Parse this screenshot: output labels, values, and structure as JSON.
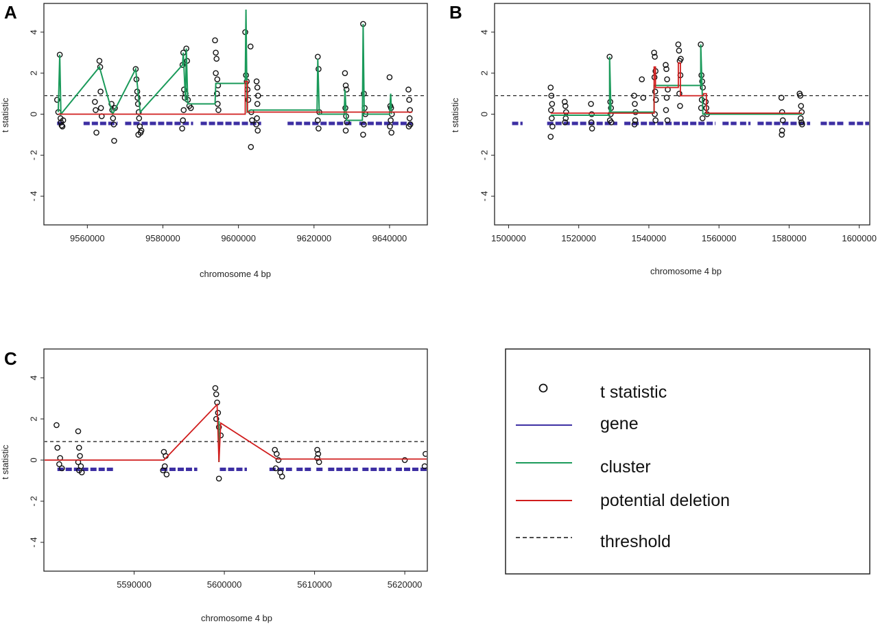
{
  "colors": {
    "point": "#111111",
    "gene": "#3d2fa3",
    "cluster": "#1a9a5a",
    "deletion": "#d01c1c",
    "threshold": "#111111"
  },
  "legend": {
    "items": [
      {
        "key": "point",
        "label": "t statistic"
      },
      {
        "key": "gene",
        "label": "gene"
      },
      {
        "key": "cluster",
        "label": "cluster"
      },
      {
        "key": "deletion",
        "label": "potential deletion"
      },
      {
        "key": "threshold",
        "label": "threshold"
      }
    ]
  },
  "chart_data": [
    {
      "panel": "A",
      "type": "scatter",
      "xlabel": "chromosome 4 bp",
      "ylabel": "t statistic",
      "xlim": [
        9548500,
        9650000
      ],
      "ylim": [
        -5.4,
        5.4
      ],
      "xticks": [
        9560000,
        9580000,
        9600000,
        9620000,
        9640000
      ],
      "yticks": [
        4,
        2,
        0,
        -2,
        -4
      ],
      "threshold": 0.9,
      "gene_segments": [
        [
          9552000,
          9554000
        ],
        [
          9559000,
          9568000
        ],
        [
          9570000,
          9588000
        ],
        [
          9590000,
          9606000
        ],
        [
          9613000,
          9630000
        ],
        [
          9632000,
          9646000
        ]
      ],
      "gene_y": -0.45,
      "points": [
        [
          9552000,
          0.7
        ],
        [
          9552300,
          0.1
        ],
        [
          9552700,
          2.9
        ],
        [
          9552900,
          -0.2
        ],
        [
          9553000,
          -0.4
        ],
        [
          9553200,
          -0.55
        ],
        [
          9553400,
          -0.6
        ],
        [
          9553600,
          -0.3
        ],
        [
          9562000,
          0.6
        ],
        [
          9562200,
          0.2
        ],
        [
          9562400,
          -0.9
        ],
        [
          9563200,
          2.6
        ],
        [
          9563400,
          2.3
        ],
        [
          9563500,
          1.1
        ],
        [
          9563600,
          0.3
        ],
        [
          9563800,
          -0.1
        ],
        [
          9566400,
          0.5
        ],
        [
          9566600,
          0.2
        ],
        [
          9566800,
          -0.2
        ],
        [
          9567000,
          -0.5
        ],
        [
          9567100,
          -1.3
        ],
        [
          9567300,
          0.3
        ],
        [
          9572800,
          2.2
        ],
        [
          9573000,
          1.7
        ],
        [
          9573200,
          1.1
        ],
        [
          9573300,
          0.8
        ],
        [
          9573400,
          0.5
        ],
        [
          9573600,
          0.1
        ],
        [
          9573700,
          -0.2
        ],
        [
          9573900,
          -0.6
        ],
        [
          9574100,
          -0.9
        ],
        [
          9574300,
          -0.8
        ],
        [
          9573500,
          -1.0
        ],
        [
          9585200,
          2.4
        ],
        [
          9585400,
          3.0
        ],
        [
          9585600,
          1.2
        ],
        [
          9585800,
          0.8
        ],
        [
          9585500,
          0.2
        ],
        [
          9585300,
          -0.3
        ],
        [
          9585100,
          -0.7
        ],
        [
          9586000,
          1.0
        ],
        [
          9586200,
          3.2
        ],
        [
          9586400,
          2.6
        ],
        [
          9586600,
          0.7
        ],
        [
          9587000,
          0.4
        ],
        [
          9587400,
          0.3
        ],
        [
          9593800,
          3.6
        ],
        [
          9594000,
          3.0
        ],
        [
          9594200,
          2.7
        ],
        [
          9594000,
          2.0
        ],
        [
          9594400,
          1.7
        ],
        [
          9594600,
          1.4
        ],
        [
          9594300,
          1.0
        ],
        [
          9594500,
          0.5
        ],
        [
          9594700,
          0.2
        ],
        [
          9601800,
          4.0
        ],
        [
          9602000,
          1.9
        ],
        [
          9602200,
          1.6
        ],
        [
          9602400,
          1.2
        ],
        [
          9602600,
          0.7
        ],
        [
          9603200,
          3.3
        ],
        [
          9603400,
          0.1
        ],
        [
          9603600,
          -0.3
        ],
        [
          9603300,
          -1.6
        ],
        [
          9604800,
          1.6
        ],
        [
          9605000,
          1.3
        ],
        [
          9605200,
          0.9
        ],
        [
          9605000,
          0.5
        ],
        [
          9604900,
          -0.2
        ],
        [
          9604700,
          -0.5
        ],
        [
          9605100,
          -0.8
        ],
        [
          9621000,
          2.8
        ],
        [
          9621200,
          2.2
        ],
        [
          9621400,
          0.1
        ],
        [
          9621000,
          -0.3
        ],
        [
          9621200,
          -0.7
        ],
        [
          9628200,
          2.0
        ],
        [
          9628400,
          1.4
        ],
        [
          9628600,
          1.2
        ],
        [
          9628300,
          0.3
        ],
        [
          9628500,
          -0.1
        ],
        [
          9628700,
          -0.4
        ],
        [
          9628400,
          -0.8
        ],
        [
          9633000,
          4.4
        ],
        [
          9633200,
          1.0
        ],
        [
          9633400,
          0.3
        ],
        [
          9633600,
          0.0
        ],
        [
          9633200,
          -0.5
        ],
        [
          9633000,
          -1.0
        ],
        [
          9640000,
          1.8
        ],
        [
          9640200,
          0.4
        ],
        [
          9640400,
          0.3
        ],
        [
          9640600,
          0.0
        ],
        [
          9640300,
          -0.3
        ],
        [
          9640100,
          -0.6
        ],
        [
          9640500,
          -0.9
        ],
        [
          9645000,
          1.2
        ],
        [
          9645200,
          0.7
        ],
        [
          9645400,
          0.2
        ],
        [
          9645300,
          -0.2
        ],
        [
          9645100,
          -0.6
        ],
        [
          9645500,
          -0.5
        ]
      ],
      "cluster_path": [
        [
          9552300,
          0.1
        ],
        [
          9552700,
          2.9
        ],
        [
          9553000,
          0.0
        ],
        [
          9563200,
          2.3
        ],
        [
          9566700,
          0.0
        ],
        [
          9572800,
          2.2
        ],
        [
          9574000,
          0.1
        ],
        [
          9585200,
          2.4
        ],
        [
          9585400,
          3.0
        ],
        [
          9586000,
          0.6
        ],
        [
          9586200,
          3.2
        ],
        [
          9586600,
          0.5
        ],
        [
          9593800,
          0.5
        ],
        [
          9594000,
          1.5
        ],
        [
          9601800,
          1.5
        ],
        [
          9602000,
          5.1
        ],
        [
          9602300,
          0.1
        ],
        [
          9603200,
          0.2
        ],
        [
          9620800,
          0.2
        ],
        [
          9621000,
          2.7
        ],
        [
          9621400,
          0.0
        ],
        [
          9628000,
          0.0
        ],
        [
          9628200,
          1.2
        ],
        [
          9628600,
          -0.3
        ],
        [
          9632800,
          -0.3
        ],
        [
          9633000,
          4.4
        ],
        [
          9633300,
          0.0
        ],
        [
          9640000,
          0.0
        ],
        [
          9640300,
          1.0
        ],
        [
          9640500,
          0.0
        ]
      ],
      "deletion_path": [
        [
          9552300,
          0.0
        ],
        [
          9601800,
          0.0
        ],
        [
          9601800,
          1.6
        ],
        [
          9602400,
          1.6
        ],
        [
          9602400,
          0.1
        ],
        [
          9646000,
          0.1
        ]
      ]
    },
    {
      "panel": "B",
      "type": "scatter",
      "xlabel": "chromosome 4 bp",
      "ylabel": "t statistic",
      "xlim": [
        1496000,
        1603000
      ],
      "ylim": [
        -5.4,
        5.4
      ],
      "xticks": [
        1500000,
        1520000,
        1540000,
        1560000,
        1580000,
        1600000
      ],
      "yticks": [
        4,
        2,
        0,
        -2,
        -4
      ],
      "threshold": 0.9,
      "gene_segments": [
        [
          1501000,
          1504000
        ],
        [
          1511000,
          1531000
        ],
        [
          1533000,
          1559000
        ],
        [
          1561000,
          1565000
        ],
        [
          1566000,
          1569000
        ],
        [
          1571000,
          1586000
        ],
        [
          1589000,
          1596000
        ],
        [
          1597000,
          1603000
        ]
      ],
      "gene_y": -0.45,
      "points": [
        [
          1512000,
          1.3
        ],
        [
          1512200,
          0.9
        ],
        [
          1512400,
          0.5
        ],
        [
          1512100,
          0.2
        ],
        [
          1512300,
          -0.2
        ],
        [
          1512500,
          -0.6
        ],
        [
          1512000,
          -1.1
        ],
        [
          1516000,
          0.6
        ],
        [
          1516200,
          0.4
        ],
        [
          1516400,
          0.1
        ],
        [
          1516300,
          -0.2
        ],
        [
          1516100,
          -0.4
        ],
        [
          1523500,
          0.5
        ],
        [
          1523700,
          0.0
        ],
        [
          1523600,
          -0.4
        ],
        [
          1523800,
          -0.7
        ],
        [
          1528800,
          2.8
        ],
        [
          1529000,
          0.6
        ],
        [
          1529200,
          0.3
        ],
        [
          1529100,
          0.0
        ],
        [
          1528900,
          -0.3
        ],
        [
          1529300,
          -0.4
        ],
        [
          1535800,
          0.9
        ],
        [
          1536000,
          0.5
        ],
        [
          1536200,
          0.1
        ],
        [
          1536100,
          -0.3
        ],
        [
          1535900,
          -0.5
        ],
        [
          1538000,
          1.7
        ],
        [
          1538400,
          0.8
        ],
        [
          1541500,
          3.0
        ],
        [
          1541700,
          2.8
        ],
        [
          1541900,
          2.1
        ],
        [
          1541600,
          1.8
        ],
        [
          1541800,
          1.1
        ],
        [
          1542000,
          0.7
        ],
        [
          1541700,
          0.0
        ],
        [
          1541900,
          -0.3
        ],
        [
          1544800,
          2.4
        ],
        [
          1545000,
          2.2
        ],
        [
          1545200,
          1.7
        ],
        [
          1545400,
          1.2
        ],
        [
          1545100,
          0.8
        ],
        [
          1544900,
          0.2
        ],
        [
          1545300,
          -0.3
        ],
        [
          1548400,
          3.4
        ],
        [
          1548600,
          3.1
        ],
        [
          1548800,
          2.6
        ],
        [
          1549000,
          1.9
        ],
        [
          1548700,
          1.0
        ],
        [
          1548900,
          0.4
        ],
        [
          1549100,
          2.7
        ],
        [
          1554800,
          3.4
        ],
        [
          1555000,
          1.9
        ],
        [
          1555200,
          1.6
        ],
        [
          1555400,
          1.3
        ],
        [
          1555100,
          0.7
        ],
        [
          1554900,
          0.3
        ],
        [
          1555300,
          -0.2
        ],
        [
          1556200,
          0.6
        ],
        [
          1556400,
          0.3
        ],
        [
          1556600,
          0.0
        ],
        [
          1577800,
          0.8
        ],
        [
          1578000,
          0.1
        ],
        [
          1578200,
          -0.3
        ],
        [
          1578000,
          -0.8
        ],
        [
          1577900,
          -1.0
        ],
        [
          1583000,
          1.0
        ],
        [
          1583200,
          0.9
        ],
        [
          1583400,
          0.4
        ],
        [
          1583600,
          0.1
        ],
        [
          1583300,
          -0.2
        ],
        [
          1583500,
          -0.4
        ],
        [
          1583700,
          -0.5
        ]
      ],
      "cluster_path": [
        [
          1512000,
          -0.05
        ],
        [
          1528800,
          -0.05
        ],
        [
          1528800,
          2.8
        ],
        [
          1529200,
          0.1
        ],
        [
          1541500,
          0.1
        ],
        [
          1541500,
          1.4
        ],
        [
          1554800,
          1.4
        ],
        [
          1554800,
          3.4
        ],
        [
          1555400,
          0.0
        ],
        [
          1583700,
          0.0
        ]
      ],
      "deletion_path": [
        [
          1512000,
          0.05
        ],
        [
          1541500,
          0.05
        ],
        [
          1541500,
          2.3
        ],
        [
          1541900,
          2.3
        ],
        [
          1541900,
          1.3
        ],
        [
          1548400,
          1.3
        ],
        [
          1548400,
          2.5
        ],
        [
          1549000,
          2.5
        ],
        [
          1549000,
          0.9
        ],
        [
          1555600,
          0.9
        ],
        [
          1555600,
          1.0
        ],
        [
          1556400,
          1.0
        ],
        [
          1556400,
          0.05
        ],
        [
          1583700,
          0.05
        ]
      ]
    },
    {
      "panel": "C",
      "type": "scatter",
      "xlabel": "chromosome 4 bp",
      "ylabel": "t statistic",
      "xlim": [
        5580000,
        5622500
      ],
      "ylim": [
        -5.4,
        5.4
      ],
      "xticks": [
        5590000,
        5600000,
        5610000,
        5620000
      ],
      "yticks": [
        4,
        2,
        0,
        -2,
        -4
      ],
      "threshold": 0.9,
      "gene_segments": [
        [
          5581500,
          5587800
        ],
        [
          5593000,
          5597000
        ],
        [
          5599500,
          5602500
        ],
        [
          5605000,
          5607500
        ],
        [
          5608000,
          5609800
        ],
        [
          5610200,
          5611000
        ],
        [
          5611500,
          5614800
        ],
        [
          5615300,
          5618500
        ],
        [
          5619000,
          5622500
        ]
      ],
      "gene_y": -0.45,
      "points": [
        [
          5581400,
          1.7
        ],
        [
          5581500,
          0.6
        ],
        [
          5581800,
          0.1
        ],
        [
          5581700,
          -0.2
        ],
        [
          5582000,
          -0.4
        ],
        [
          5583800,
          1.4
        ],
        [
          5583900,
          0.6
        ],
        [
          5584000,
          0.2
        ],
        [
          5583800,
          -0.1
        ],
        [
          5584100,
          -0.3
        ],
        [
          5583900,
          -0.5
        ],
        [
          5584200,
          -0.6
        ],
        [
          5593300,
          0.4
        ],
        [
          5593500,
          0.2
        ],
        [
          5593400,
          -0.3
        ],
        [
          5593200,
          -0.5
        ],
        [
          5593600,
          -0.7
        ],
        [
          5599000,
          3.5
        ],
        [
          5599100,
          3.2
        ],
        [
          5599200,
          2.8
        ],
        [
          5599300,
          2.3
        ],
        [
          5599100,
          2.0
        ],
        [
          5599400,
          1.6
        ],
        [
          5599600,
          1.2
        ],
        [
          5599400,
          -0.9
        ],
        [
          5605600,
          0.5
        ],
        [
          5605800,
          0.3
        ],
        [
          5606000,
          0.0
        ],
        [
          5605700,
          -0.4
        ],
        [
          5606200,
          -0.6
        ],
        [
          5606400,
          -0.8
        ],
        [
          5610300,
          0.5
        ],
        [
          5610400,
          0.3
        ],
        [
          5610300,
          0.1
        ],
        [
          5610500,
          -0.1
        ],
        [
          5620000,
          0.0
        ],
        [
          5622300,
          0.3
        ],
        [
          5622200,
          -0.3
        ]
      ],
      "cluster_path": [
        [
          5599400,
          -0.1
        ],
        [
          5599400,
          1.9
        ]
      ],
      "deletion_path": [
        [
          5580000,
          0.0
        ],
        [
          5593300,
          0.0
        ],
        [
          5599200,
          2.7
        ],
        [
          5599400,
          -0.1
        ],
        [
          5599600,
          1.8
        ],
        [
          5605800,
          0.05
        ],
        [
          5622500,
          0.05
        ]
      ]
    }
  ]
}
